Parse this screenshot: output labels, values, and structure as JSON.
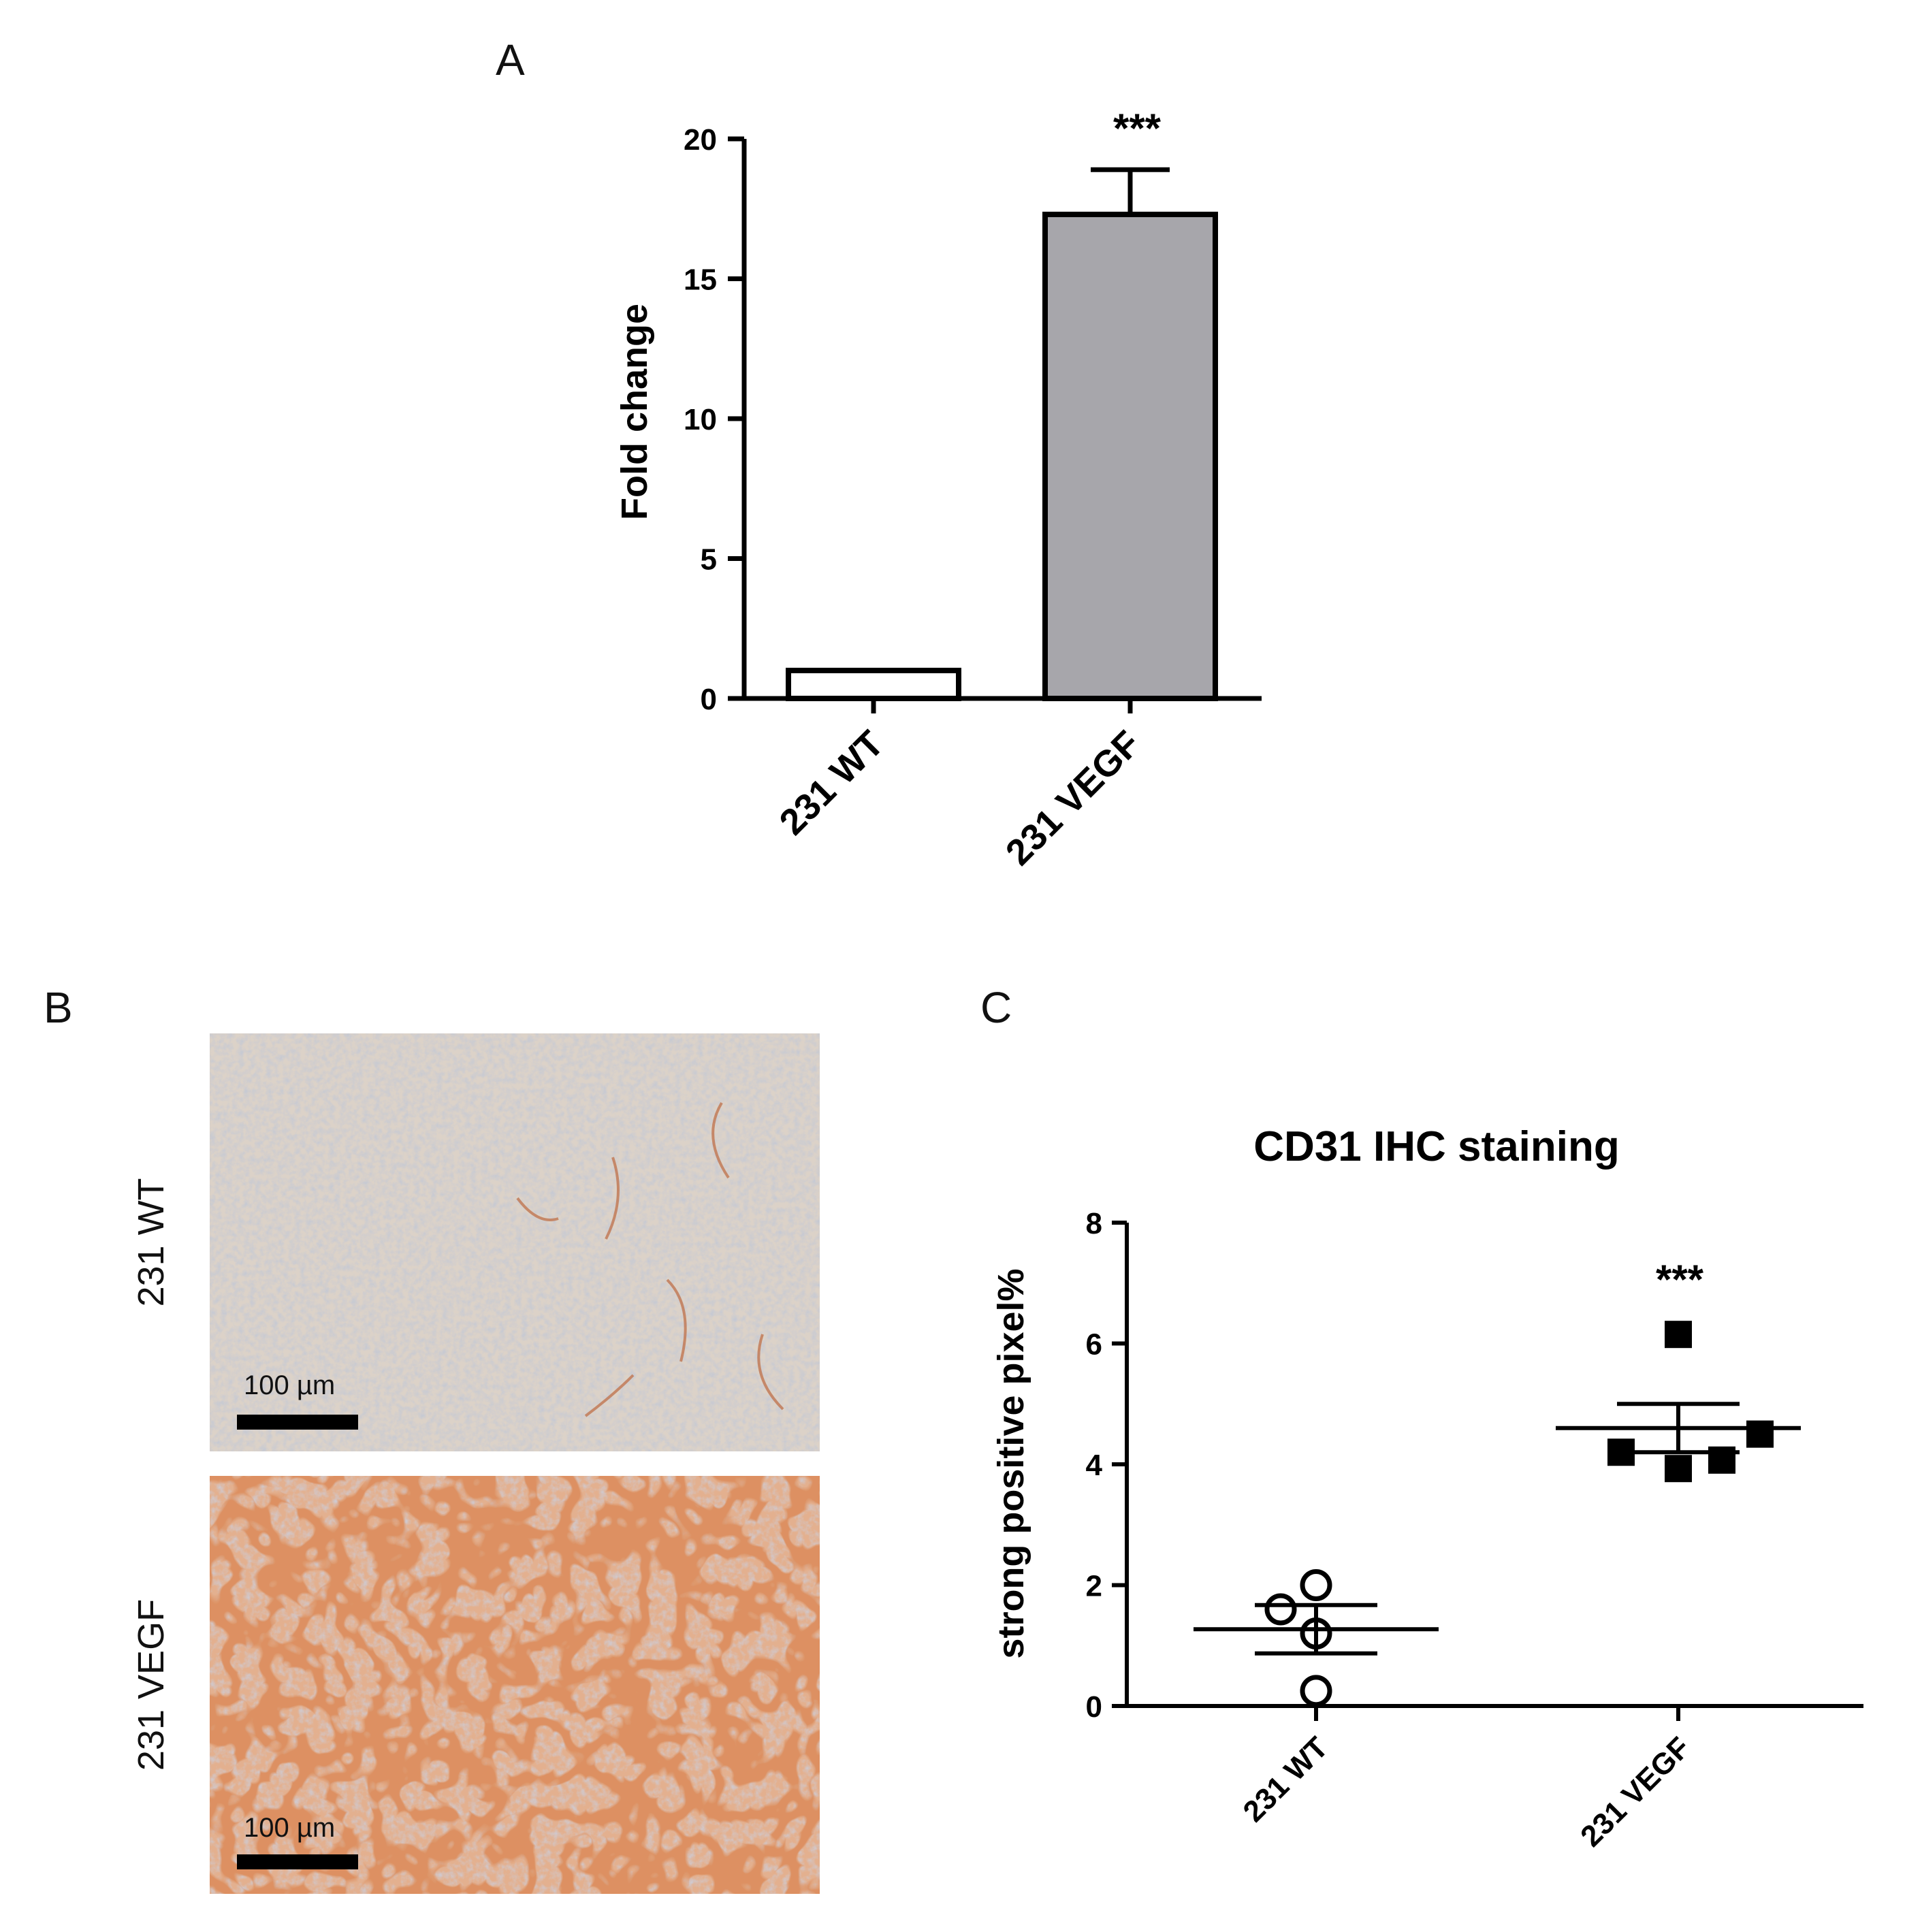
{
  "panels": {
    "A": "A",
    "B": "B",
    "C": "C"
  },
  "chart_data": [
    {
      "type": "bar",
      "panel": "A",
      "title": "",
      "ylabel": "Fold change",
      "xlabel": "",
      "ylim": [
        0,
        20
      ],
      "yticks": [
        "0",
        "5",
        "10",
        "15",
        "20"
      ],
      "categories": [
        "231 WT",
        "231 VEGF"
      ],
      "values": [
        1.0,
        17.3
      ],
      "error_upper": [
        0.0,
        1.6
      ],
      "bar_fill_colors": [
        "#ffffff",
        "#a7a6ab"
      ],
      "significance": {
        "231 VEGF": "***"
      },
      "grid": false
    },
    {
      "type": "scatter",
      "panel": "C",
      "title": "CD31 IHC staining",
      "ylabel": "strong positive pixel%",
      "xlabel": "",
      "ylim": [
        0,
        8
      ],
      "yticks": [
        "0",
        "2",
        "4",
        "6",
        "8"
      ],
      "categories": [
        "231 WT",
        "231 VEGF"
      ],
      "groups": [
        {
          "category": "231 WT",
          "marker": "open-circle",
          "points": [
            {
              "offset": 0.0,
              "y": 2.0
            },
            {
              "offset": -0.26,
              "y": 1.6
            },
            {
              "offset": 0.0,
              "y": 1.2
            },
            {
              "offset": 0.0,
              "y": 0.25
            }
          ],
          "mean": 1.27,
          "sem_upper": 1.67,
          "sem_lower": 0.87
        },
        {
          "category": "231 VEGF",
          "marker": "filled-square",
          "points": [
            {
              "offset": 0.0,
              "y": 6.15
            },
            {
              "offset": 0.6,
              "y": 4.5
            },
            {
              "offset": -0.42,
              "y": 4.2
            },
            {
              "offset": 0.32,
              "y": 4.07
            },
            {
              "offset": 0.0,
              "y": 3.93
            }
          ],
          "mean": 4.6,
          "sem_upper": 5.0,
          "sem_lower": 4.2
        }
      ],
      "significance": {
        "231 VEGF": "***"
      },
      "grid": false
    }
  ],
  "micrographs": {
    "panel": "B",
    "rows": [
      {
        "label": "231 WT",
        "scale_bar": "100 µm",
        "tint": "#dcd2c8"
      },
      {
        "label": "231 VEGF",
        "scale_bar": "100 µm",
        "tint": "#e3b08f"
      }
    ]
  }
}
